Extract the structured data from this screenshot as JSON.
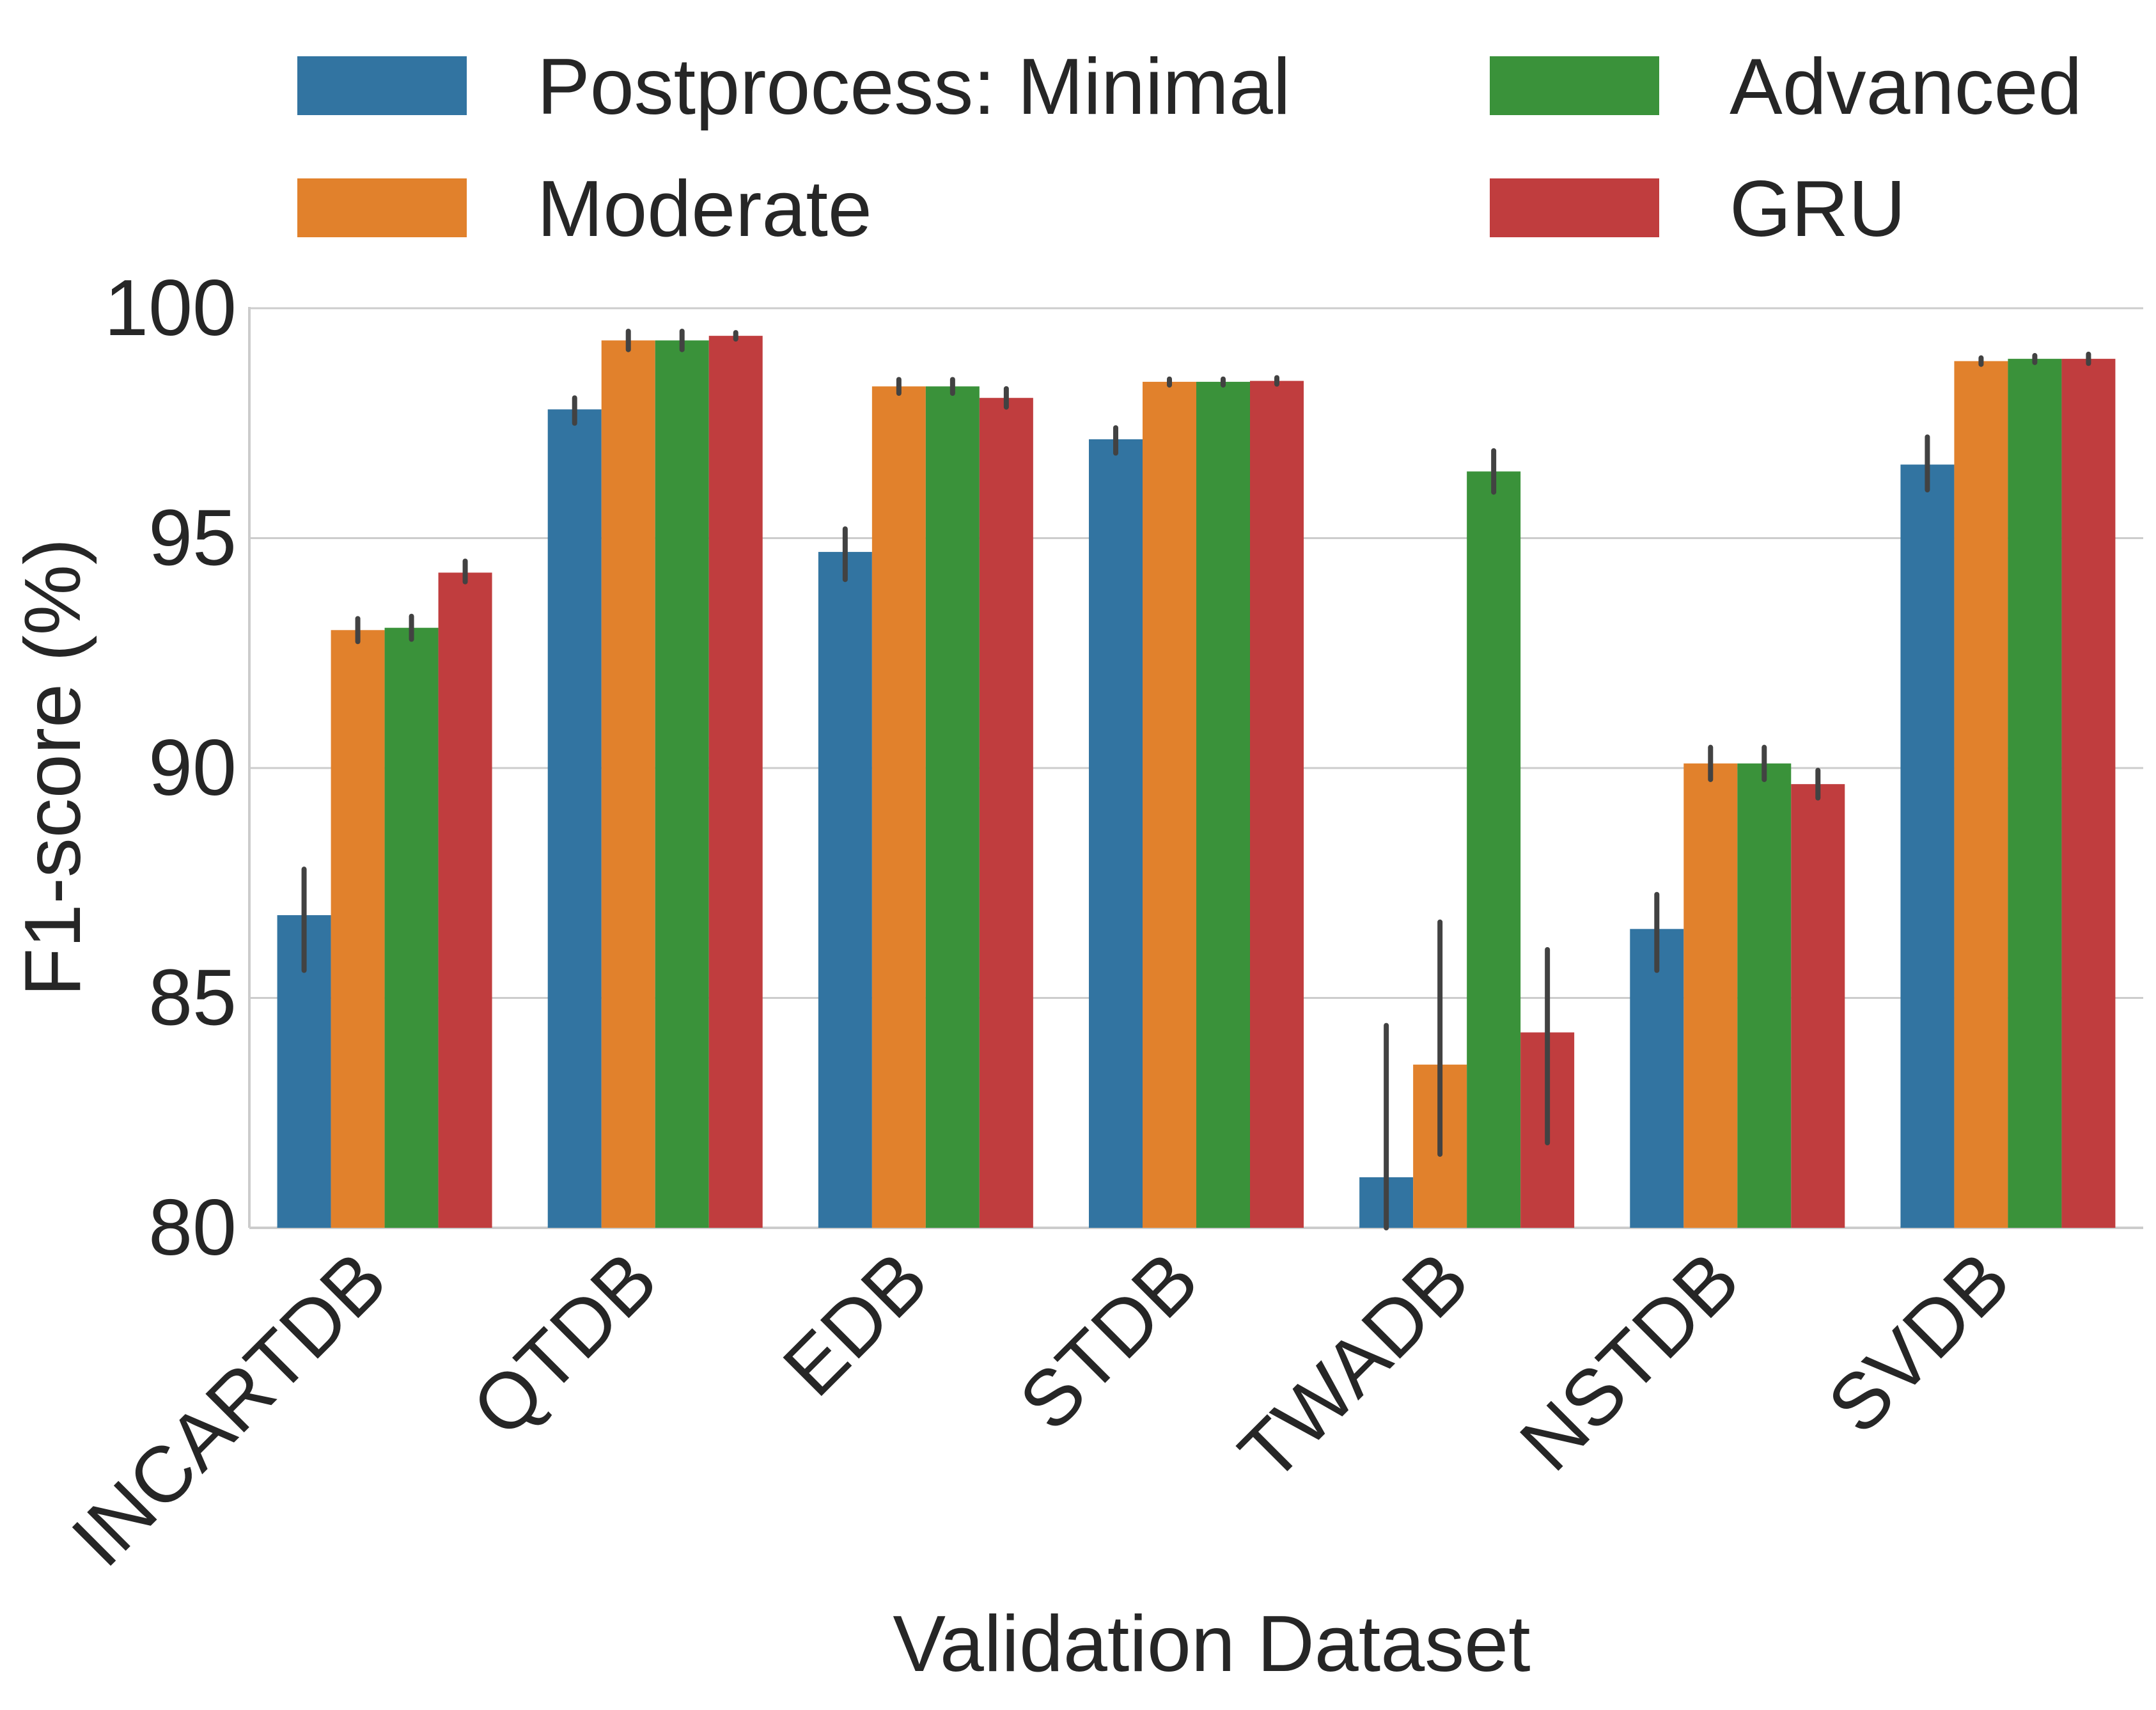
{
  "chart_data": {
    "type": "bar",
    "title": "",
    "xlabel": "Validation Dataset",
    "ylabel": "F1-score (%)",
    "ylim": [
      80,
      100
    ],
    "yticks": [
      80,
      85,
      90,
      95,
      100
    ],
    "grid": true,
    "legend_position": "top",
    "categories": [
      "INCARTDB",
      "QTDB",
      "EDB",
      "STDB",
      "TWADB",
      "NSTDB",
      "SVDB"
    ],
    "series": [
      {
        "name": "Postprocess: Minimal",
        "color": "#3274a1",
        "values": [
          86.8,
          97.8,
          94.7,
          97.15,
          81.1,
          86.5,
          96.6
        ],
        "error_low": [
          85.6,
          97.5,
          94.1,
          96.85,
          80.0,
          85.6,
          96.05
        ],
        "error_high": [
          87.8,
          98.05,
          95.2,
          97.4,
          84.4,
          87.25,
          97.2
        ]
      },
      {
        "name": "Moderate",
        "color": "#e1812c",
        "values": [
          93.0,
          99.3,
          98.3,
          98.4,
          83.55,
          90.1,
          98.85
        ],
        "error_low": [
          92.75,
          99.1,
          98.15,
          98.33,
          81.6,
          89.75,
          98.78
        ],
        "error_high": [
          93.25,
          99.5,
          98.45,
          98.46,
          86.65,
          90.45,
          98.92
        ]
      },
      {
        "name": "Advanced",
        "color": "#3a923a",
        "values": [
          93.05,
          99.3,
          98.3,
          98.4,
          96.45,
          90.1,
          98.9
        ],
        "error_low": [
          92.8,
          99.1,
          98.15,
          98.33,
          96.0,
          89.75,
          98.82
        ],
        "error_high": [
          93.3,
          99.5,
          98.45,
          98.46,
          96.9,
          90.45,
          98.97
        ]
      },
      {
        "name": "GRU",
        "color": "#c03d3e",
        "values": [
          94.25,
          99.4,
          98.05,
          98.42,
          84.25,
          89.65,
          98.9
        ],
        "error_low": [
          94.05,
          99.33,
          97.85,
          98.35,
          81.85,
          89.35,
          98.8
        ],
        "error_high": [
          94.5,
          99.47,
          98.25,
          98.49,
          86.05,
          89.95,
          99.0
        ]
      }
    ]
  },
  "legend": {
    "entries": [
      {
        "label": "Postprocess: Minimal",
        "color": "#3274a1"
      },
      {
        "label": "Advanced",
        "color": "#3a923a"
      },
      {
        "label": "Moderate",
        "color": "#e1812c"
      },
      {
        "label": "GRU",
        "color": "#c03d3e"
      }
    ]
  },
  "colors": {
    "grid": "#cccccc",
    "error_bar": "#424242",
    "text": "#262626"
  }
}
